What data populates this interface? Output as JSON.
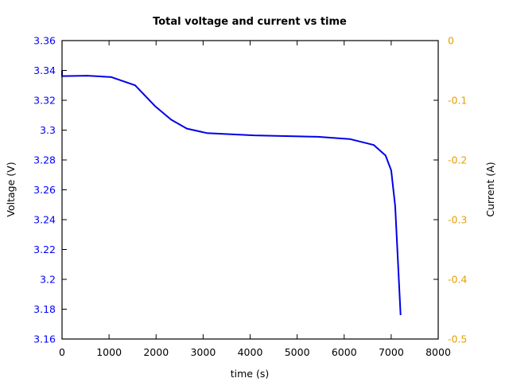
{
  "chart_data": {
    "type": "line",
    "title": "Total voltage and current vs time",
    "xlabel": "time (s)",
    "ylabel": "Voltage (V)",
    "y2label": "Current (A)",
    "xlim": [
      0,
      8000
    ],
    "ylim": [
      3.16,
      3.36
    ],
    "y2lim": [
      -0.5,
      0
    ],
    "grid": false,
    "legend": null,
    "x_ticks": [
      "0",
      "1000",
      "2000",
      "3000",
      "4000",
      "5000",
      "6000",
      "7000",
      "8000"
    ],
    "y_ticks": [
      "3.36",
      "3.34",
      "3.32",
      "3.3",
      "3.28",
      "3.26",
      "3.24",
      "3.22",
      "3.2",
      "3.18",
      "3.16"
    ],
    "y2_ticks": [
      "0",
      "-0.1",
      "-0.2",
      "-0.3",
      "-0.4",
      "-0.5"
    ],
    "colors": {
      "voltage": "#0000e6",
      "left_axis_ticks": "#0000ff",
      "right_axis_ticks": "#e69f00",
      "frame": "#000000"
    },
    "series": [
      {
        "name": "Voltage",
        "axis": "left",
        "x": [
          0,
          0,
          20,
          540,
          1050,
          1555,
          1980,
          2320,
          2655,
          3080,
          4090,
          5445,
          6120,
          6630,
          6880,
          7000,
          7085,
          7135,
          7200
        ],
        "values": [
          3.34,
          3.336,
          3.3362,
          3.3365,
          3.3355,
          3.33,
          3.316,
          3.307,
          3.301,
          3.298,
          3.2965,
          3.2955,
          3.294,
          3.29,
          3.283,
          3.273,
          3.249,
          3.217,
          3.176
        ]
      }
    ]
  }
}
